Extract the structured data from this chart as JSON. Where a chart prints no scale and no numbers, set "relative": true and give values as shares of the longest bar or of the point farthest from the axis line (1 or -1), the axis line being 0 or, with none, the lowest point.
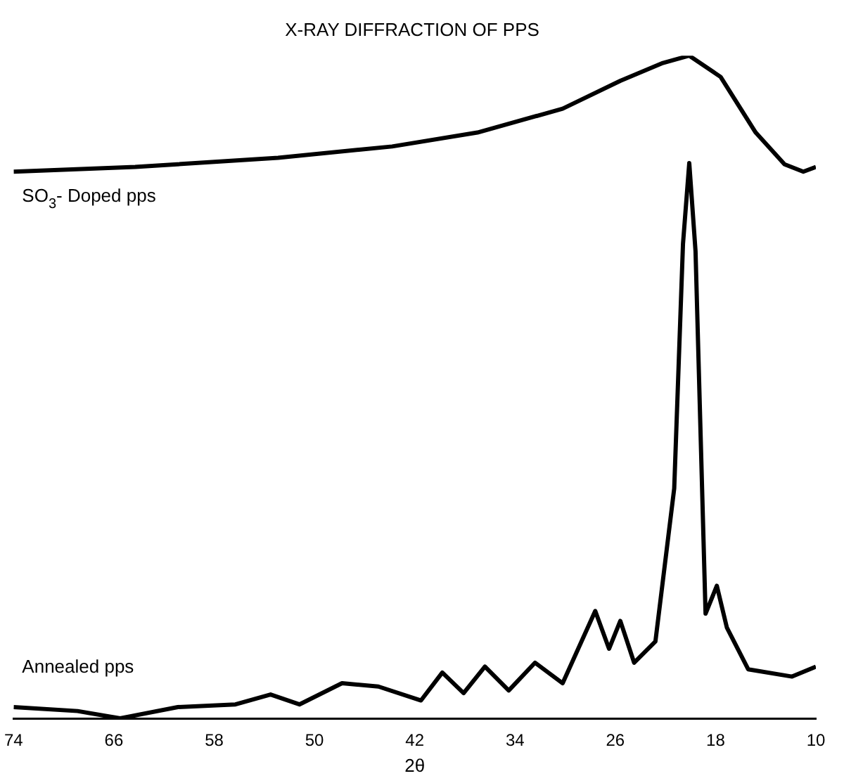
{
  "chart_data": {
    "type": "line",
    "title": "X-RAY DIFFRACTION OF PPS",
    "xlabel": "2θ",
    "relative": true,
    "xlim": [
      74,
      10
    ],
    "xticks": [
      74,
      66,
      58,
      50,
      42,
      34,
      26,
      18,
      10
    ],
    "grid": false,
    "legend": false,
    "marker": "none",
    "line_style": "solid",
    "tick_labels": "x",
    "series": [
      {
        "name": "SO$_{3}$- Doped pps",
        "color": "#000000",
        "x": [
          74,
          64.3,
          52.9,
          43.8,
          37.0,
          30.2,
          25.6,
          22.2,
          20.1,
          17.6,
          14.8,
          12.5,
          11.0,
          10
        ],
        "values": [
          0.825,
          0.832,
          0.846,
          0.863,
          0.884,
          0.92,
          0.962,
          0.989,
          1.0,
          0.968,
          0.884,
          0.836,
          0.825,
          0.832
        ]
      },
      {
        "name": "Annealed pps",
        "color": "#000000",
        "x": [
          74,
          68.9,
          65.5,
          60.9,
          56.3,
          53.5,
          51.2,
          47.8,
          44.9,
          41.5,
          39.8,
          38.1,
          36.4,
          34.5,
          32.4,
          30.2,
          27.6,
          26.5,
          25.6,
          24.5,
          22.8,
          21.3,
          20.6,
          20.1,
          19.6,
          18.8,
          17.9,
          17.1,
          15.4,
          11.9,
          10
        ],
        "values": [
          0.017,
          0.011,
          0.0,
          0.017,
          0.021,
          0.036,
          0.021,
          0.053,
          0.048,
          0.027,
          0.069,
          0.038,
          0.078,
          0.042,
          0.084,
          0.053,
          0.162,
          0.105,
          0.147,
          0.084,
          0.116,
          0.347,
          0.716,
          0.838,
          0.705,
          0.158,
          0.2,
          0.137,
          0.074,
          0.063,
          0.078
        ]
      }
    ]
  }
}
